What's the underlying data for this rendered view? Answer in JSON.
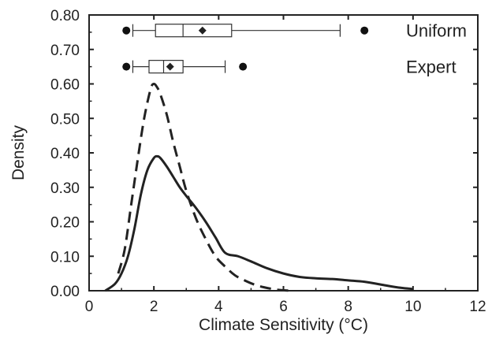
{
  "chart_data": {
    "type": "line",
    "xlabel": "Climate Sensitivity (°C)",
    "ylabel": "Density",
    "xlim": [
      0,
      12
    ],
    "ylim": [
      0,
      0.8
    ],
    "xticks": [
      0,
      2,
      4,
      6,
      8,
      10,
      12
    ],
    "yticks": [
      0.0,
      0.1,
      0.2,
      0.3,
      0.4,
      0.5,
      0.6,
      0.7,
      0.8
    ],
    "ytick_labels": [
      "0.00",
      "0.10",
      "0.20",
      "0.30",
      "0.40",
      "0.50",
      "0.60",
      "0.70",
      "0.80"
    ],
    "xtick_labels": [
      "0",
      "2",
      "4",
      "6",
      "8",
      "10",
      "12"
    ],
    "grid": false,
    "series": [
      {
        "name": "Uniform",
        "style": "solid",
        "color": "#222222",
        "x": [
          0.5,
          0.8,
          1.0,
          1.2,
          1.4,
          1.6,
          1.8,
          2.0,
          2.1,
          2.2,
          2.4,
          2.6,
          2.8,
          3.0,
          3.3,
          3.6,
          3.9,
          4.2,
          4.6,
          5.0,
          5.5,
          6.0,
          6.5,
          7.0,
          7.5,
          8.0,
          8.5,
          9.0,
          9.5,
          10.0
        ],
        "y": [
          0.0,
          0.02,
          0.05,
          0.1,
          0.18,
          0.28,
          0.35,
          0.385,
          0.39,
          0.385,
          0.36,
          0.33,
          0.3,
          0.275,
          0.24,
          0.2,
          0.155,
          0.11,
          0.1,
          0.085,
          0.065,
          0.05,
          0.04,
          0.036,
          0.034,
          0.03,
          0.026,
          0.018,
          0.01,
          0.005
        ]
      },
      {
        "name": "Expert",
        "style": "dashed",
        "color": "#222222",
        "x": [
          0.9,
          1.1,
          1.3,
          1.5,
          1.7,
          1.9,
          2.0,
          2.1,
          2.2,
          2.4,
          2.6,
          2.8,
          3.0,
          3.3,
          3.6,
          3.9,
          4.2,
          4.5,
          4.8,
          5.1,
          5.4,
          5.8,
          6.2
        ],
        "y": [
          0.05,
          0.12,
          0.25,
          0.38,
          0.5,
          0.585,
          0.6,
          0.59,
          0.57,
          0.51,
          0.43,
          0.36,
          0.29,
          0.21,
          0.15,
          0.1,
          0.07,
          0.045,
          0.03,
          0.018,
          0.01,
          0.003,
          0.0
        ]
      }
    ],
    "boxplots": [
      {
        "name": "Uniform",
        "label": "Uniform",
        "level": 0.755,
        "whisker_low": 1.35,
        "q1": 2.05,
        "median": 2.9,
        "mean": 3.5,
        "q3": 4.4,
        "whisker_high": 7.75,
        "outliers": [
          1.15,
          8.5
        ]
      },
      {
        "name": "Expert",
        "label": "Expert",
        "level": 0.65,
        "whisker_low": 1.35,
        "q1": 1.85,
        "median": 2.3,
        "mean": 2.5,
        "q3": 2.9,
        "whisker_high": 4.2,
        "outliers": [
          1.15,
          4.75
        ]
      }
    ]
  }
}
